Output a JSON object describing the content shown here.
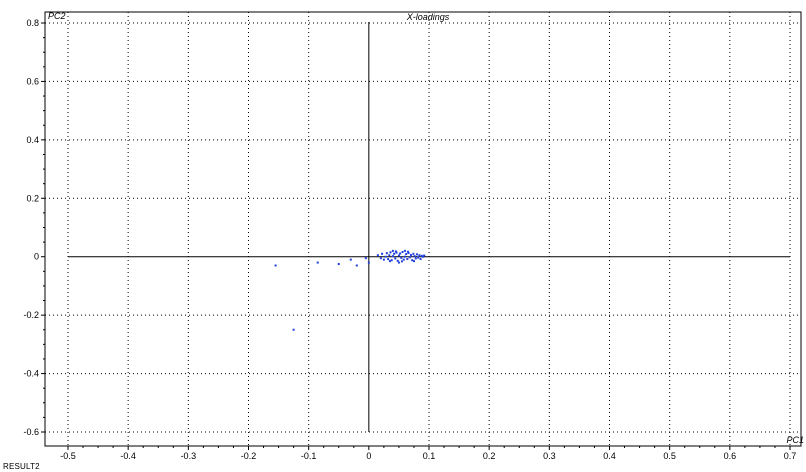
{
  "window": {
    "footer_label": "RESULT2"
  },
  "chart_data": {
    "type": "scatter",
    "title": "X-loadings",
    "xlabel": "PC1",
    "ylabel": "PC2",
    "xlim": [
      -0.5,
      0.7
    ],
    "ylim": [
      -0.6,
      0.8
    ],
    "xticks": [
      -0.5,
      -0.4,
      -0.3,
      -0.2,
      -0.1,
      0,
      0.1,
      0.2,
      0.3,
      0.4,
      0.5,
      0.6,
      0.7
    ],
    "xtick_labels": [
      "-0.5",
      "-0.4",
      "-0.3",
      "-0.2",
      "-0.1",
      "0",
      "0.1",
      "0.2",
      "0.3",
      "0.4",
      "0.5",
      "0.6",
      "0.7"
    ],
    "yticks": [
      0.8,
      0.6,
      0.4,
      0.2,
      0,
      -0.2,
      -0.4,
      -0.6
    ],
    "ytick_labels": [
      "0.8",
      "0.6",
      "0.4",
      "0.2",
      "0",
      "-0.2",
      "-0.4",
      "-0.6"
    ],
    "grid": true,
    "point_color": "#1f3fdc",
    "series": [
      {
        "points": [
          [
            -0.125,
            -0.25
          ],
          [
            -0.155,
            -0.03
          ],
          [
            -0.085,
            -0.02
          ],
          [
            -0.05,
            -0.025
          ],
          [
            -0.03,
            -0.01
          ],
          [
            -0.02,
            -0.03
          ],
          [
            -0.005,
            -0.005
          ],
          [
            0.0,
            -0.02
          ],
          [
            0.015,
            0.005
          ],
          [
            0.02,
            -0.005
          ],
          [
            0.022,
            0.01
          ],
          [
            0.025,
            -0.01
          ],
          [
            0.028,
            0.0
          ],
          [
            0.03,
            0.012
          ],
          [
            0.032,
            -0.008
          ],
          [
            0.034,
            0.005
          ],
          [
            0.036,
            0.015
          ],
          [
            0.038,
            -0.012
          ],
          [
            0.04,
            0.002
          ],
          [
            0.042,
            0.01
          ],
          [
            0.044,
            -0.006
          ],
          [
            0.046,
            0.014
          ],
          [
            0.048,
            -0.014
          ],
          [
            0.05,
            0.004
          ],
          [
            0.052,
            0.011
          ],
          [
            0.054,
            -0.004
          ],
          [
            0.056,
            0.016
          ],
          [
            0.058,
            -0.01
          ],
          [
            0.06,
            0.0
          ],
          [
            0.062,
            0.009
          ],
          [
            0.064,
            -0.008
          ],
          [
            0.066,
            0.013
          ],
          [
            0.068,
            -0.002
          ],
          [
            0.07,
            0.006
          ],
          [
            0.072,
            -0.012
          ],
          [
            0.074,
            0.01
          ],
          [
            0.076,
            0.002
          ],
          [
            0.078,
            -0.006
          ],
          [
            0.08,
            0.008
          ],
          [
            0.082,
            -0.003
          ],
          [
            0.084,
            0.005
          ],
          [
            0.086,
            -0.008
          ],
          [
            0.088,
            0.003
          ],
          [
            0.09,
            0.0
          ],
          [
            0.092,
            0.004
          ],
          [
            0.035,
            -0.015
          ],
          [
            0.045,
            0.018
          ],
          [
            0.055,
            -0.016
          ],
          [
            0.065,
            0.017
          ],
          [
            0.075,
            -0.015
          ],
          [
            0.05,
            -0.02
          ],
          [
            0.04,
            0.02
          ],
          [
            0.06,
            0.02
          ]
        ]
      }
    ]
  }
}
